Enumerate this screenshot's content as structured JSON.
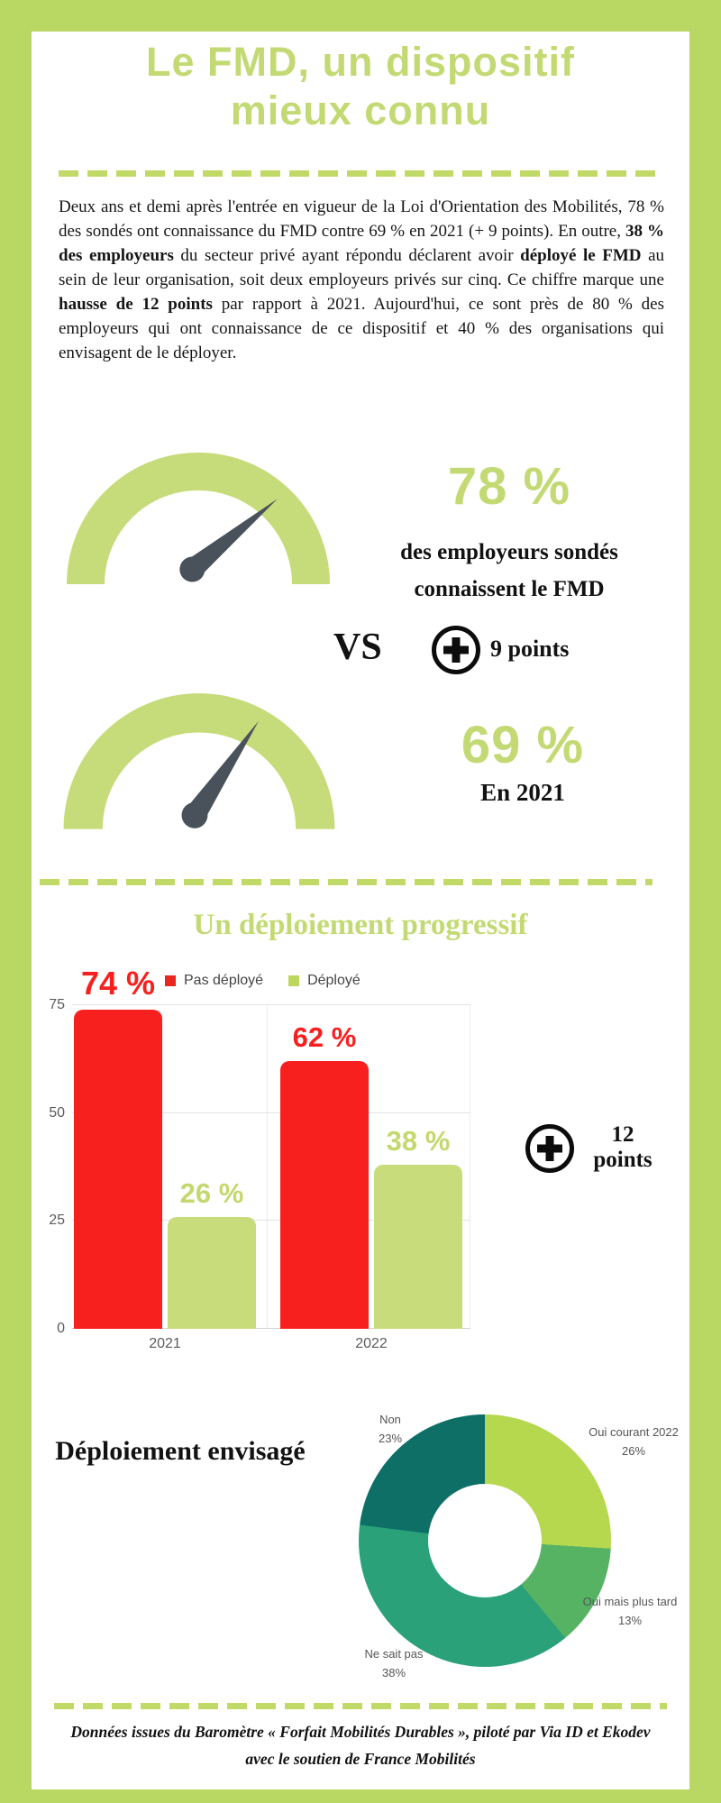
{
  "header": {
    "title_line1": "Le FMD, un dispositif",
    "title_line2": "mieux connu"
  },
  "intro": {
    "seg1": "Deux ans et demi après l'entrée en vigueur de la Loi d'Orientation des Mobilités, 78 % des sondés ont connaissance du FMD contre 69 % en 2021 (+ 9 points). En outre, ",
    "seg2": "38 % des employeurs",
    "seg3": " du secteur privé ayant répondu déclarent avoir ",
    "seg4": "déployé le FMD",
    "seg5": " au sein de leur organisation, soit deux employeurs privés sur cinq. Ce chiffre marque une ",
    "seg6": "hausse de 12 points",
    "seg7": " par rapport à 2021. Aujourd'hui, ce sont près de 80 % des employeurs qui ont connaissance de ce dispositif et 40 % des organisations qui envisagent de le déployer."
  },
  "comparison": {
    "vs_label": "VS",
    "delta_label": "9 points",
    "plus_icon": "plus-in-circle"
  },
  "comparison2": {
    "delta_line1": "12",
    "delta_line2": "points",
    "plus_icon": "plus-in-circle"
  },
  "footer": {
    "source_text": "Données issues du Baromètre « Forfait Mobilités Durables », piloté par Via ID et Ekodev avec le soutien de France Mobilités"
  },
  "colors": {
    "frame_green": "#b9d763",
    "accent_green": "#c3da74",
    "bar_red": "#f7201f",
    "needle_gray": "#49525a",
    "chart_text_gray": "#5c5c5c"
  },
  "chart_data": [
    {
      "type": "gauge",
      "value": 78,
      "max": 100,
      "value_label": "78 %",
      "caption_line1": "des employeurs sondés",
      "caption_line2": "connaissent le FMD",
      "arc_color": "#c6db79",
      "needle_color": "#49525a"
    },
    {
      "type": "gauge",
      "value": 69,
      "max": 100,
      "value_label": "69 %",
      "caption_line1": "En 2021",
      "arc_color": "#c6db79",
      "needle_color": "#49525a"
    },
    {
      "type": "bar",
      "title": "Un déploiement progressif",
      "categories": [
        "2021",
        "2022"
      ],
      "series": [
        {
          "name": "Pas déployé",
          "color": "#f7201f",
          "values": [
            74,
            62
          ],
          "value_labels": [
            "74 %",
            "62 %"
          ]
        },
        {
          "name": "Déployé",
          "color": "#c8dc7c",
          "values": [
            26,
            38
          ],
          "value_labels": [
            "26 %",
            "38 %"
          ]
        }
      ],
      "ylim": [
        0,
        75
      ],
      "yticks": [
        "0",
        "25",
        "50",
        "75"
      ],
      "xlabel": "",
      "ylabel": "",
      "grid": true,
      "legend_position": "top"
    },
    {
      "type": "pie",
      "donut": true,
      "title": "Déploiement envisagé",
      "labels": [
        "Oui courant 2022",
        "Oui mais plus tard",
        "Ne sait pas",
        "Non"
      ],
      "values": [
        26,
        13,
        38,
        23
      ],
      "pct_labels": [
        "26%",
        "13%",
        "38%",
        "23%"
      ],
      "colors": [
        "#b5d84e",
        "#57b364",
        "#2ba17a",
        "#0e6f67"
      ],
      "start": "top",
      "direction": "clockwise"
    }
  ]
}
